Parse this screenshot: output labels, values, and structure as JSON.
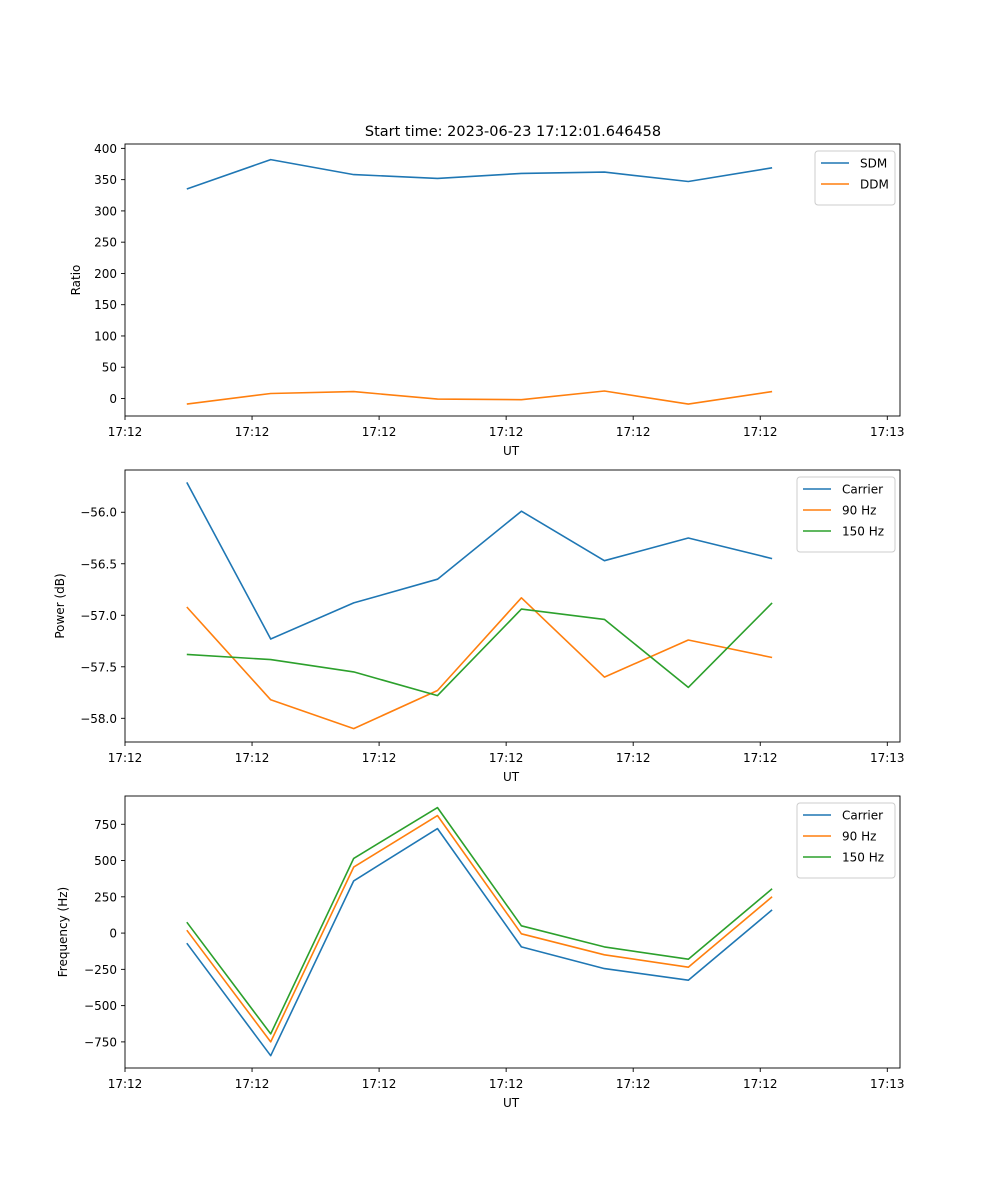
{
  "figure": {
    "title": "Start time: 2023-06-23 17:12:01.646458"
  },
  "colors": {
    "blue": "#1f77b4",
    "orange": "#ff7f0e",
    "green": "#2ca02c"
  },
  "chart_data": [
    {
      "type": "line",
      "title": "Start time: 2023-06-23 17:12:01.646458",
      "xlabel": "UT",
      "ylabel": "Ratio",
      "xlim": [
        0,
        9.15
      ],
      "ylim": [
        -28,
        407
      ],
      "x_tick_positions": [
        0,
        1.5,
        3,
        4.5,
        6,
        7.5,
        9
      ],
      "x_tick_labels": [
        "17:12",
        "17:12",
        "17:12",
        "17:12",
        "17:12",
        "17:12",
        "17:13"
      ],
      "y_ticks": [
        0,
        50,
        100,
        150,
        200,
        250,
        300,
        350,
        400
      ],
      "y_tick_labels": [
        "0",
        "50",
        "100",
        "150",
        "200",
        "250",
        "300",
        "350",
        "400"
      ],
      "x": [
        0.73,
        1.72,
        2.7,
        3.69,
        4.68,
        5.66,
        6.65,
        7.64
      ],
      "legend": "top-right",
      "grid": false,
      "series": [
        {
          "name": "SDM",
          "color": "#1f77b4",
          "values": [
            335,
            382,
            358,
            352,
            360,
            362,
            347,
            369
          ]
        },
        {
          "name": "DDM",
          "color": "#ff7f0e",
          "values": [
            -9,
            8,
            11,
            -1,
            -2,
            12,
            -9,
            11
          ]
        }
      ]
    },
    {
      "type": "line",
      "xlabel": "UT",
      "ylabel": "Power (dB)",
      "xlim": [
        0,
        9.15
      ],
      "ylim": [
        -58.23,
        -55.59
      ],
      "x_tick_positions": [
        0,
        1.5,
        3,
        4.5,
        6,
        7.5,
        9
      ],
      "x_tick_labels": [
        "17:12",
        "17:12",
        "17:12",
        "17:12",
        "17:12",
        "17:12",
        "17:13"
      ],
      "y_ticks": [
        -58.0,
        -57.5,
        -57.0,
        -56.5,
        -56.0
      ],
      "y_tick_labels": [
        "−58.0",
        "−57.5",
        "−57.0",
        "−56.5",
        "−56.0"
      ],
      "x": [
        0.73,
        1.72,
        2.7,
        3.69,
        4.68,
        5.66,
        6.65,
        7.64
      ],
      "legend": "top-right",
      "grid": false,
      "series": [
        {
          "name": "Carrier",
          "color": "#1f77b4",
          "values": [
            -55.71,
            -57.23,
            -56.88,
            -56.65,
            -55.99,
            -56.47,
            -56.25,
            -56.45
          ]
        },
        {
          "name": "90 Hz",
          "color": "#ff7f0e",
          "values": [
            -56.92,
            -57.82,
            -58.1,
            -57.73,
            -56.83,
            -57.6,
            -57.24,
            -57.41
          ]
        },
        {
          "name": "150 Hz",
          "color": "#2ca02c",
          "values": [
            -57.38,
            -57.43,
            -57.55,
            -57.78,
            -56.94,
            -57.04,
            -57.7,
            -56.88
          ]
        }
      ]
    },
    {
      "type": "line",
      "xlabel": "UT",
      "ylabel": "Frequency (Hz)",
      "xlim": [
        0,
        9.15
      ],
      "ylim": [
        -930,
        945
      ],
      "x_tick_positions": [
        0,
        1.5,
        3,
        4.5,
        6,
        7.5,
        9
      ],
      "x_tick_labels": [
        "17:12",
        "17:12",
        "17:12",
        "17:12",
        "17:12",
        "17:12",
        "17:13"
      ],
      "y_ticks": [
        -750,
        -500,
        -250,
        0,
        250,
        500,
        750
      ],
      "y_tick_labels": [
        "−750",
        "−500",
        "−250",
        "0",
        "250",
        "500",
        "750"
      ],
      "x": [
        0.73,
        1.72,
        2.7,
        3.69,
        4.68,
        5.66,
        6.65,
        7.64
      ],
      "legend": "top-right",
      "grid": false,
      "series": [
        {
          "name": "Carrier",
          "color": "#1f77b4",
          "values": [
            -70,
            -845,
            360,
            720,
            -95,
            -245,
            -325,
            160
          ]
        },
        {
          "name": "90 Hz",
          "color": "#ff7f0e",
          "values": [
            20,
            -750,
            455,
            810,
            -5,
            -150,
            -235,
            250
          ]
        },
        {
          "name": "150 Hz",
          "color": "#2ca02c",
          "values": [
            75,
            -695,
            515,
            865,
            50,
            -95,
            -180,
            305
          ]
        }
      ]
    }
  ]
}
